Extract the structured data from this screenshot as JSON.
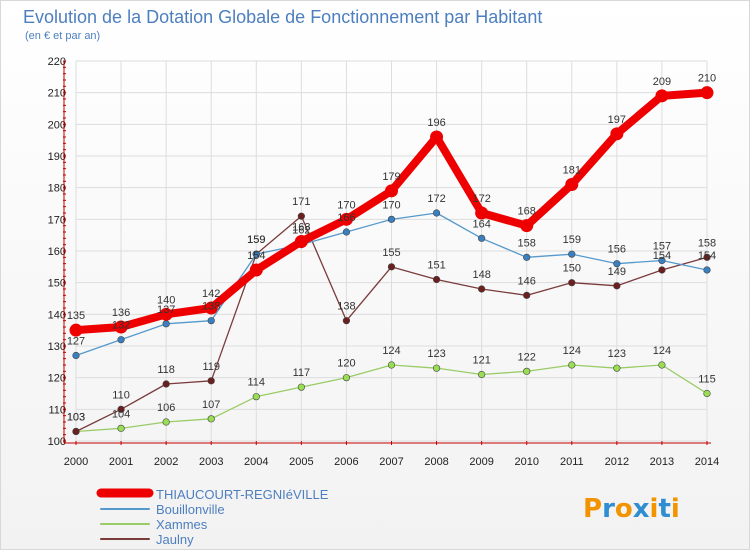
{
  "chart_data": {
    "type": "line",
    "title": "Evolution de la Dotation Globale de Fonctionnement par Habitant",
    "subtitle": "(en € et par an)",
    "xlabel": "",
    "ylabel": "",
    "x": [
      "2000",
      "2001",
      "2002",
      "2003",
      "2004",
      "2005",
      "2006",
      "2007",
      "2008",
      "2009",
      "2010",
      "2011",
      "2012",
      "2013",
      "2014"
    ],
    "ylim": [
      100,
      220
    ],
    "yticks": [
      100,
      110,
      120,
      130,
      140,
      150,
      160,
      170,
      180,
      190,
      200,
      210,
      220
    ],
    "grid": true,
    "series": [
      {
        "name": "Xammes",
        "color": "#99cc66",
        "marker": "#99dd55",
        "values": [
          103,
          104,
          106,
          107,
          114,
          117,
          120,
          124,
          123,
          121,
          122,
          124,
          123,
          124,
          115
        ]
      },
      {
        "name": "Jaulny",
        "color": "#7a3b3b",
        "marker": "#6b1f1f",
        "values": [
          103,
          110,
          118,
          119,
          159,
          171,
          138,
          155,
          151,
          148,
          146,
          150,
          149,
          154,
          158
        ]
      },
      {
        "name": "Bouillonville",
        "color": "#5599cc",
        "marker": "#3a7fc0",
        "values": [
          127,
          132,
          137,
          138,
          159,
          162,
          166,
          170,
          172,
          164,
          158,
          159,
          156,
          157,
          154
        ]
      },
      {
        "name": "THIAUCOURT-REGNIéVILLE",
        "color": "#ee0000",
        "marker": "#ee0000",
        "values": [
          135,
          136,
          140,
          142,
          154,
          163,
          170,
          179,
          196,
          172,
          168,
          181,
          197,
          209,
          210
        ]
      }
    ],
    "legend": [
      "THIAUCOURT-REGNIéVILLE",
      "Bouillonville",
      "Xammes",
      "Jaulny"
    ]
  },
  "branding": {
    "logo_text": "Proxiti"
  },
  "colors": {
    "title": "#4d7fbf",
    "grid": "#dddddd"
  }
}
